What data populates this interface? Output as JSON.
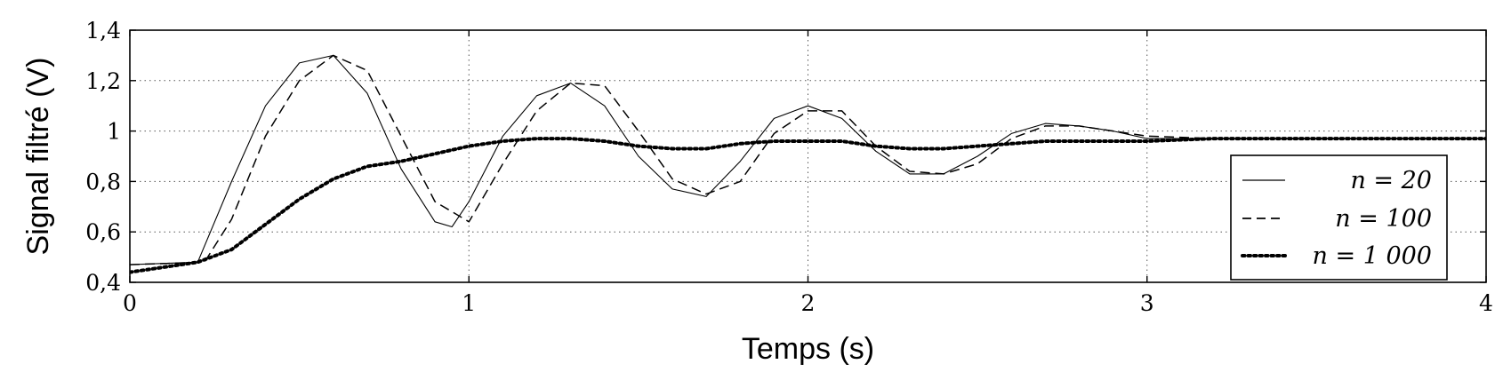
{
  "chart_data": {
    "type": "line",
    "title": "",
    "xlabel": "Temps (s)",
    "ylabel": "Signal filtré (V)",
    "xlim": [
      0,
      4
    ],
    "ylim": [
      0.4,
      1.4
    ],
    "xticks": [
      0,
      1,
      2,
      3,
      4
    ],
    "xtick_labels": [
      "0",
      "1",
      "2",
      "3",
      "4"
    ],
    "yticks": [
      0.4,
      0.6,
      0.8,
      1.0,
      1.2,
      1.4
    ],
    "ytick_labels": [
      "0,4",
      "0,6",
      "0,8",
      "1",
      "1,2",
      "1,4"
    ],
    "grid": true,
    "legend_position": "right",
    "series": [
      {
        "name": "n = 20",
        "style": "solid",
        "color": "#000000",
        "x": [
          0,
          0.2,
          0.3,
          0.4,
          0.5,
          0.6,
          0.7,
          0.8,
          0.9,
          0.95,
          1.0,
          1.1,
          1.2,
          1.3,
          1.4,
          1.5,
          1.6,
          1.7,
          1.8,
          1.9,
          2.0,
          2.1,
          2.2,
          2.3,
          2.4,
          2.5,
          2.6,
          2.7,
          2.8,
          2.9,
          3.0,
          3.2,
          3.5,
          4.0
        ],
        "y": [
          0.47,
          0.48,
          0.8,
          1.1,
          1.27,
          1.3,
          1.15,
          0.85,
          0.64,
          0.62,
          0.72,
          0.98,
          1.14,
          1.19,
          1.1,
          0.9,
          0.77,
          0.74,
          0.88,
          1.05,
          1.1,
          1.05,
          0.92,
          0.83,
          0.83,
          0.9,
          0.99,
          1.03,
          1.02,
          1.0,
          0.97,
          0.97,
          0.97,
          0.97
        ]
      },
      {
        "name": "n = 100",
        "style": "dashed",
        "color": "#000000",
        "x": [
          0,
          0.22,
          0.3,
          0.4,
          0.5,
          0.6,
          0.7,
          0.8,
          0.9,
          1.0,
          1.1,
          1.2,
          1.3,
          1.4,
          1.5,
          1.6,
          1.7,
          1.8,
          1.9,
          2.0,
          2.1,
          2.2,
          2.3,
          2.4,
          2.5,
          2.6,
          2.7,
          2.8,
          2.9,
          3.0,
          3.2,
          3.5,
          4.0
        ],
        "y": [
          0.47,
          0.48,
          0.65,
          0.98,
          1.2,
          1.3,
          1.24,
          0.98,
          0.72,
          0.64,
          0.87,
          1.08,
          1.19,
          1.18,
          1.0,
          0.81,
          0.75,
          0.8,
          0.99,
          1.08,
          1.08,
          0.94,
          0.84,
          0.83,
          0.87,
          0.97,
          1.02,
          1.02,
          1.0,
          0.98,
          0.97,
          0.97,
          0.97
        ]
      },
      {
        "name": "n = 1 000",
        "style": "dotted",
        "color": "#000000",
        "x": [
          0,
          0.2,
          0.3,
          0.4,
          0.5,
          0.6,
          0.7,
          0.8,
          0.9,
          1.0,
          1.1,
          1.2,
          1.3,
          1.4,
          1.5,
          1.6,
          1.7,
          1.8,
          1.9,
          2.0,
          2.1,
          2.2,
          2.3,
          2.4,
          2.5,
          2.6,
          2.7,
          2.8,
          2.9,
          3.0,
          3.2,
          3.5,
          4.0
        ],
        "y": [
          0.44,
          0.48,
          0.53,
          0.63,
          0.73,
          0.81,
          0.86,
          0.88,
          0.91,
          0.94,
          0.96,
          0.97,
          0.97,
          0.96,
          0.94,
          0.93,
          0.93,
          0.95,
          0.96,
          0.96,
          0.96,
          0.94,
          0.93,
          0.93,
          0.94,
          0.95,
          0.96,
          0.96,
          0.96,
          0.96,
          0.97,
          0.97,
          0.97
        ]
      }
    ]
  }
}
